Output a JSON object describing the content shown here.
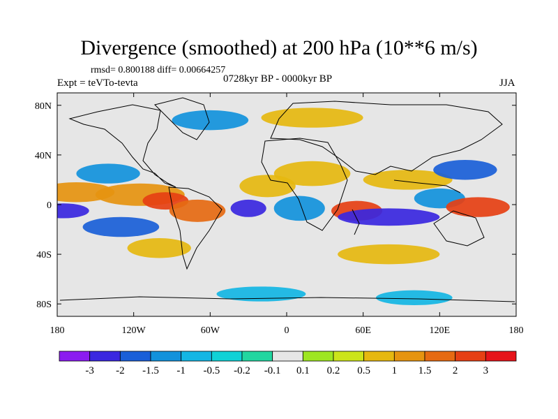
{
  "chart_data": {
    "type": "heatmap",
    "title": "Divergence (smoothed) at 200 hPa (10**6 m/s)",
    "stats_text": "rmsd= 0.800188 diff= 0.00664257",
    "experiment": "Expt = teVTo-tevta",
    "period": "0728kyr BP - 0000kyr BP",
    "season": "JJA",
    "x_ticks": [
      "180",
      "120W",
      "60W",
      "0",
      "60E",
      "120E",
      "180"
    ],
    "x_tick_values": [
      -180,
      -120,
      -60,
      0,
      60,
      120,
      180
    ],
    "y_ticks": [
      "80N",
      "40N",
      "0",
      "40S",
      "80S"
    ],
    "y_tick_values": [
      80,
      40,
      0,
      -40,
      -80
    ],
    "xlim": [
      -180,
      180
    ],
    "ylim": [
      -90,
      90
    ],
    "colorbar": {
      "labels": [
        "-3",
        "-2",
        "-1.5",
        "-1",
        "-0.5",
        "-0.2",
        "-0.1",
        "0.1",
        "0.2",
        "0.5",
        "1",
        "1.5",
        "2",
        "3"
      ],
      "colors": [
        "#8b1cf0",
        "#3a27e0",
        "#1a5fd8",
        "#1292dc",
        "#14b6e4",
        "#10d2d6",
        "#22d6a0",
        "#e6e6e6",
        "#9ee622",
        "#cce41a",
        "#e6b810",
        "#e69410",
        "#e66a12",
        "#e64014",
        "#e6141a"
      ]
    },
    "blobs": [
      {
        "lon": -165,
        "lat": 10,
        "rx": 30,
        "ry": 8,
        "value": 1.2
      },
      {
        "lon": -175,
        "lat": -5,
        "rx": 20,
        "ry": 6,
        "value": -2.5
      },
      {
        "lon": -115,
        "lat": 8,
        "rx": 35,
        "ry": 9,
        "value": 1.5
      },
      {
        "lon": -95,
        "lat": 3,
        "rx": 18,
        "ry": 7,
        "value": 2.5
      },
      {
        "lon": -70,
        "lat": -5,
        "rx": 22,
        "ry": 9,
        "value": 1.8
      },
      {
        "lon": -140,
        "lat": 25,
        "rx": 25,
        "ry": 8,
        "value": -1.2
      },
      {
        "lon": -130,
        "lat": -18,
        "rx": 30,
        "ry": 8,
        "value": -1.5
      },
      {
        "lon": -100,
        "lat": -35,
        "rx": 25,
        "ry": 8,
        "value": 0.8
      },
      {
        "lon": -30,
        "lat": -3,
        "rx": 14,
        "ry": 7,
        "value": -2.5
      },
      {
        "lon": -15,
        "lat": 15,
        "rx": 22,
        "ry": 9,
        "value": 0.8
      },
      {
        "lon": 10,
        "lat": -3,
        "rx": 20,
        "ry": 10,
        "value": -1.0
      },
      {
        "lon": 20,
        "lat": 25,
        "rx": 30,
        "ry": 10,
        "value": 0.8
      },
      {
        "lon": 55,
        "lat": -5,
        "rx": 20,
        "ry": 8,
        "value": 2.8
      },
      {
        "lon": 80,
        "lat": -10,
        "rx": 40,
        "ry": 7,
        "value": -2.8
      },
      {
        "lon": 120,
        "lat": 5,
        "rx": 20,
        "ry": 8,
        "value": -1.0
      },
      {
        "lon": 150,
        "lat": -2,
        "rx": 25,
        "ry": 8,
        "value": 2.5
      },
      {
        "lon": 95,
        "lat": 20,
        "rx": 35,
        "ry": 8,
        "value": 1.0
      },
      {
        "lon": 140,
        "lat": 28,
        "rx": 25,
        "ry": 8,
        "value": -1.5
      },
      {
        "lon": 20,
        "lat": 70,
        "rx": 40,
        "ry": 8,
        "value": 0.8
      },
      {
        "lon": -60,
        "lat": 68,
        "rx": 30,
        "ry": 8,
        "value": -1.0
      },
      {
        "lon": 80,
        "lat": -40,
        "rx": 40,
        "ry": 8,
        "value": 0.8
      },
      {
        "lon": -20,
        "lat": -72,
        "rx": 35,
        "ry": 6,
        "value": -0.8
      },
      {
        "lon": 100,
        "lat": -75,
        "rx": 30,
        "ry": 6,
        "value": -0.8
      }
    ]
  }
}
